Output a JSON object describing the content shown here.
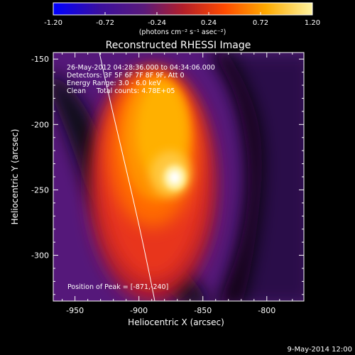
{
  "colorbar": {
    "tick_labels": [
      "-1.20",
      "-0.72",
      "-0.24",
      "0.24",
      "0.72",
      "1.20"
    ],
    "tick_values": [
      -1.2,
      -0.72,
      -0.24,
      0.24,
      0.72,
      1.2
    ],
    "range": [
      -1.2,
      1.2
    ],
    "unit_label": "(photons cm⁻² s⁻¹ asec⁻²)",
    "colors": [
      "#0000ff",
      "#3b0f9e",
      "#5a1a7a",
      "#b21e2a",
      "#ff4a00",
      "#ffaa00",
      "#fff4a0"
    ]
  },
  "image": {
    "title": "Reconstructed RHESSI Image",
    "annotations": [
      "26-May-2012 04:28:36.000 to 04:34:06.000",
      "Detectors: 3F 5F 6F 7F 8F 9F, Att 0",
      "Energy Range: 3.0 - 6.0 keV",
      "Clean     Total counts: 4.78E+05"
    ],
    "peak_label": "Position of Peak = [-871,-240]",
    "peak_x": -871,
    "peak_y": -240
  },
  "axes": {
    "xlabel": "Heliocentric X (arcsec)",
    "ylabel": "Heliocentric Y (arcsec)",
    "xlim": [
      -967,
      -771
    ],
    "ylim": [
      -335,
      -145
    ],
    "xticks": [
      -950,
      -900,
      -850,
      -800
    ],
    "xtick_labels": [
      "-950",
      "-900",
      "-850",
      "-800"
    ],
    "yticks": [
      -150,
      -200,
      -250,
      -300
    ],
    "ytick_labels": [
      "-150",
      "-200",
      "-250",
      "-300"
    ]
  },
  "footer": {
    "date": "9-May-2014 12:00"
  },
  "colors": {
    "background": "#000000",
    "foreground": "#ffffff",
    "plot_background": "#5a1a7a"
  }
}
